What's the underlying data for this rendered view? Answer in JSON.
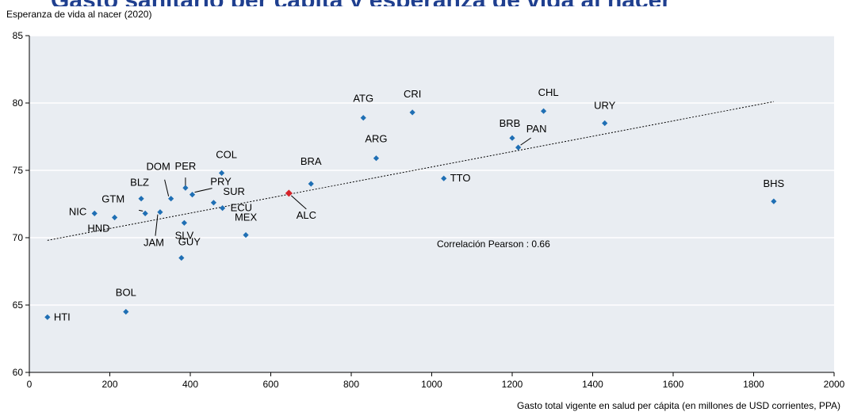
{
  "title": "Gasto sanitario per cápita y esperanza de vida al nacer",
  "colors": {
    "point": "#1f6fb4",
    "highlight": "#d6232a",
    "plot_bg": "#e9edf2",
    "grid": "#ffffff",
    "title": "#1f3f8f"
  },
  "chart_data": {
    "type": "scatter",
    "ylabel": "Esperanza de vida al nacer (2020)",
    "xlabel": "Gasto total vigente en salud per cápita (en millones de USD corrientes, PPA)",
    "xlim": [
      0,
      2000
    ],
    "ylim": [
      60,
      85
    ],
    "xticks": [
      0,
      200,
      400,
      600,
      800,
      1000,
      1200,
      1400,
      1600,
      1800,
      2000
    ],
    "yticks": [
      60,
      65,
      70,
      75,
      80,
      85
    ],
    "grid": "horizontal",
    "annotation": "Correlación Pearson : 0.66",
    "trendline": {
      "style": "dotted",
      "x": [
        45,
        1850
      ],
      "y": [
        69.8,
        80.1
      ]
    },
    "points": [
      {
        "label": "HTI",
        "x": 45,
        "y": 64.1
      },
      {
        "label": "BOL",
        "x": 240,
        "y": 64.5
      },
      {
        "label": "NIC",
        "x": 162,
        "y": 71.8
      },
      {
        "label": "HND",
        "x": 212,
        "y": 71.5
      },
      {
        "label": "BLZ",
        "x": 278,
        "y": 72.9
      },
      {
        "label": "GTM",
        "x": 288,
        "y": 71.8
      },
      {
        "label": "JAM",
        "x": 325,
        "y": 71.9
      },
      {
        "label": "DOM",
        "x": 352,
        "y": 72.9
      },
      {
        "label": "GUY",
        "x": 378,
        "y": 68.5
      },
      {
        "label": "SLV",
        "x": 385,
        "y": 71.1
      },
      {
        "label": "PER",
        "x": 388,
        "y": 73.7
      },
      {
        "label": "PRY",
        "x": 405,
        "y": 73.2
      },
      {
        "label": "SUR",
        "x": 458,
        "y": 72.6
      },
      {
        "label": "COL",
        "x": 478,
        "y": 74.8
      },
      {
        "label": "ECU",
        "x": 480,
        "y": 72.2
      },
      {
        "label": "MEX",
        "x": 538,
        "y": 70.2
      },
      {
        "label": "ALC",
        "x": 645,
        "y": 73.3,
        "highlight": true
      },
      {
        "label": "BRA",
        "x": 700,
        "y": 74.0
      },
      {
        "label": "ATG",
        "x": 830,
        "y": 78.9
      },
      {
        "label": "ARG",
        "x": 862,
        "y": 75.9
      },
      {
        "label": "CRI",
        "x": 952,
        "y": 79.3
      },
      {
        "label": "TTO",
        "x": 1030,
        "y": 74.4
      },
      {
        "label": "BRB",
        "x": 1200,
        "y": 77.4
      },
      {
        "label": "PAN",
        "x": 1215,
        "y": 76.7
      },
      {
        "label": "CHL",
        "x": 1278,
        "y": 79.4
      },
      {
        "label": "URY",
        "x": 1430,
        "y": 78.5
      },
      {
        "label": "BHS",
        "x": 1850,
        "y": 72.7
      }
    ]
  }
}
